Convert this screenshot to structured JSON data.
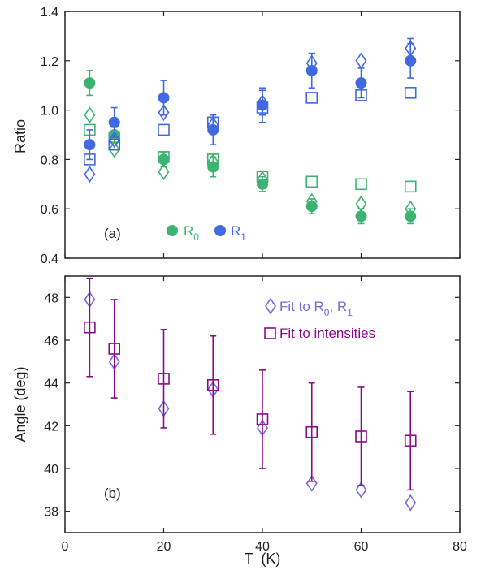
{
  "colors": {
    "r0": "#3cb371",
    "r1": "#4169e1",
    "angle_r": "#7b68d8",
    "angle_i": "#8b0a8b",
    "axis": "#222222"
  },
  "chart_data": [
    {
      "panel": "(a)",
      "type": "scatter",
      "ylabel": "Ratio",
      "xlim": [
        0,
        80
      ],
      "ylim": [
        0.4,
        1.4
      ],
      "yticks": [
        "0.4",
        "0.6",
        "0.8",
        "1.0",
        "1.2",
        "1.4"
      ],
      "grid": false,
      "legend": {
        "placement": "bottom-center",
        "r0_main": "R",
        "r0_sub": "0",
        "r1_main": "R",
        "r1_sub": "1"
      },
      "series": [
        {
          "name": "R0",
          "marker": "filled-circle",
          "color": "r0",
          "x": [
            5,
            10,
            20,
            30,
            40,
            50,
            60,
            70
          ],
          "y": [
            1.11,
            0.9,
            0.8,
            0.77,
            0.7,
            0.61,
            0.57,
            0.57
          ],
          "err": [
            0.05,
            0.03,
            0.03,
            0.04,
            0.03,
            0.03,
            0.03,
            0.03
          ]
        },
        {
          "marker": "open-diamond",
          "color": "r0",
          "x": [
            5,
            10,
            20,
            30,
            40,
            50,
            60,
            70
          ],
          "y": [
            0.98,
            0.84,
            0.75,
            0.79,
            0.72,
            0.63,
            0.62,
            0.6
          ]
        },
        {
          "marker": "open-square",
          "color": "r0",
          "x": [
            5,
            10,
            20,
            30,
            40,
            50,
            60,
            70
          ],
          "y": [
            0.92,
            0.89,
            0.81,
            0.8,
            0.73,
            0.71,
            0.7,
            0.69
          ]
        },
        {
          "name": "R1",
          "marker": "filled-circle",
          "color": "r1",
          "x": [
            5,
            10,
            20,
            30,
            40,
            50,
            60,
            70
          ],
          "y": [
            0.86,
            0.95,
            1.05,
            0.92,
            1.02,
            1.16,
            1.11,
            1.2
          ],
          "err": [
            0.06,
            0.06,
            0.07,
            0.06,
            0.07,
            0.07,
            0.06,
            0.07
          ]
        },
        {
          "marker": "open-diamond",
          "color": "r1",
          "x": [
            5,
            10,
            20,
            30,
            40,
            50,
            60,
            70
          ],
          "y": [
            0.74,
            0.88,
            0.99,
            0.94,
            1.03,
            1.19,
            1.2,
            1.25
          ],
          "err": [
            0.0,
            0.0,
            0.0,
            0.03,
            0.05,
            0.04,
            0.0,
            0.04
          ]
        },
        {
          "marker": "open-square",
          "color": "r1",
          "x": [
            5,
            10,
            20,
            30,
            40,
            50,
            60,
            70
          ],
          "y": [
            0.8,
            0.86,
            0.92,
            0.95,
            1.01,
            1.05,
            1.06,
            1.07
          ]
        }
      ]
    },
    {
      "panel": "(b)",
      "type": "scatter",
      "xlabel": "T  (K)",
      "ylabel": "Angle  (deg)",
      "xlim": [
        0,
        80
      ],
      "ylim": [
        37,
        49
      ],
      "xticks": [
        "0",
        "20",
        "40",
        "60",
        "80"
      ],
      "yticks": [
        "38",
        "40",
        "42",
        "44",
        "46",
        "48"
      ],
      "grid": false,
      "legend": {
        "placement": "top-right",
        "fit_r_prefix": "Fit to R",
        "fit_r_sub0": "0",
        "fit_r_mid": ", R",
        "fit_r_sub1": "1",
        "fit_i_label": "Fit to intensities"
      },
      "series": [
        {
          "marker": "open-diamond",
          "color": "angle_r",
          "x": [
            5,
            10,
            20,
            30,
            40,
            50,
            60,
            70
          ],
          "y": [
            47.9,
            45.0,
            42.8,
            43.7,
            41.9,
            39.3,
            39.0,
            38.4
          ]
        },
        {
          "marker": "open-square",
          "color": "angle_i",
          "x": [
            5,
            10,
            20,
            30,
            40,
            50,
            60,
            70
          ],
          "y": [
            46.6,
            45.6,
            44.2,
            43.9,
            42.3,
            41.7,
            41.5,
            41.3
          ],
          "err": [
            2.3,
            2.3,
            2.3,
            2.3,
            2.3,
            2.3,
            2.3,
            2.3
          ]
        }
      ]
    }
  ]
}
